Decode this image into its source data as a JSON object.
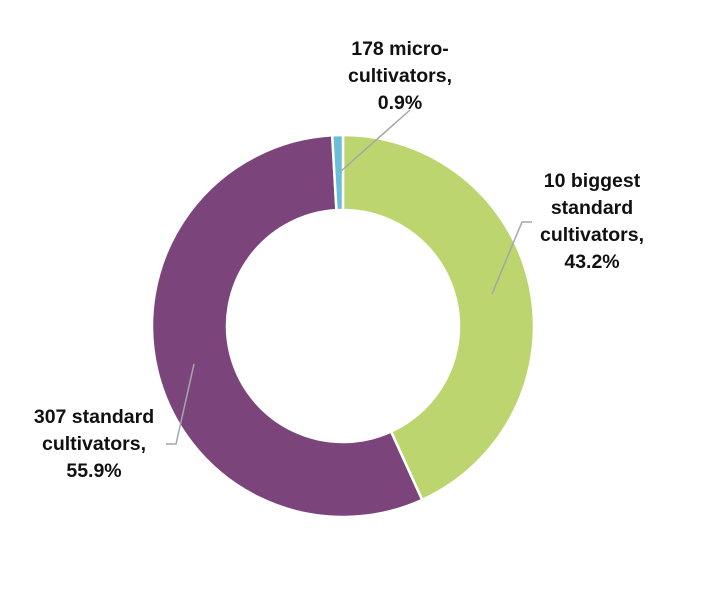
{
  "chart_data": {
    "type": "pie",
    "variant": "doughnut",
    "title": "",
    "start_angle_deg": 0,
    "direction": "clockwise",
    "slices": [
      {
        "name": "10 biggest standard cultivators",
        "value": 43.2,
        "color": "#BCD56F",
        "label_lines": [
          "10 biggest",
          "standard",
          "cultivators,",
          "43.2%"
        ]
      },
      {
        "name": "307 standard cultivators",
        "value": 55.9,
        "color": "#7B457B",
        "label_lines": [
          "307 standard",
          "cultivators,",
          "55.9%"
        ]
      },
      {
        "name": "178 micro-cultivators",
        "value": 0.9,
        "color": "#6BBDD8",
        "label_lines": [
          "178 micro-",
          "cultivators,",
          "0.9%"
        ]
      }
    ],
    "legend": "none",
    "data_labels": "outside with leader lines"
  },
  "labels": {
    "green": {
      "l1": "10 biggest",
      "l2": "standard",
      "l3": "cultivators,",
      "l4": "43.2%"
    },
    "purple": {
      "l1": "307 standard",
      "l2": "cultivators,",
      "l3": "55.9%"
    },
    "blue": {
      "l1": "178 micro-",
      "l2": "cultivators,",
      "l3": "0.9%"
    }
  }
}
